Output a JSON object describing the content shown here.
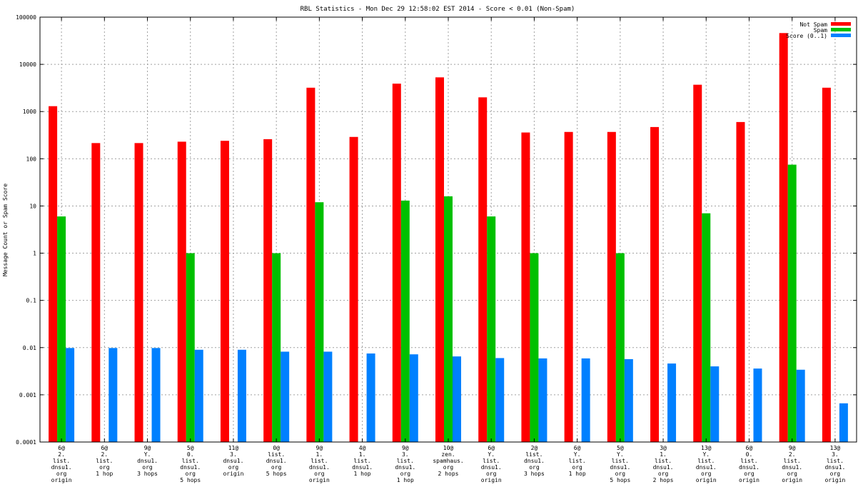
{
  "chart_data": {
    "type": "bar",
    "title": "RBL Statistics - Mon Dec 29 12:58:02 EST 2014 - Score < 0.01 (Non-Spam)",
    "ylabel": "Message Count or Spam Score",
    "xlabel": "",
    "yscale": "log",
    "ylim": [
      0.0001,
      100000
    ],
    "grid": true,
    "legend_position": "top-right",
    "y_ticks": [
      "0.0001",
      "0.001",
      "0.01",
      "0.1",
      "1",
      "10",
      "100",
      "1000",
      "10000",
      "100000"
    ],
    "categories": [
      [
        "6@",
        "2.",
        "list.",
        "dnsu1.",
        "org",
        "origin"
      ],
      [
        "6@",
        "2.",
        "list.",
        "org",
        "1 hop"
      ],
      [
        "9@",
        "Y.",
        "dnsu1.",
        "org",
        "3 hops"
      ],
      [
        "5@",
        "0.",
        "list.",
        "dnsu1.",
        "org",
        "5 hops"
      ],
      [
        "11@",
        "3.",
        "dnsu1.",
        "org",
        "origin"
      ],
      [
        "0@",
        "list.",
        "dnsu1.",
        "org",
        "5 hops"
      ],
      [
        "9@",
        "1.",
        "list.",
        "dnsu1.",
        "org",
        "origin"
      ],
      [
        "4@",
        "1.",
        "list.",
        "dnsu1.",
        "1 hop"
      ],
      [
        "9@",
        "3.",
        "list.",
        "dnsu1.",
        "org",
        "1 hop"
      ],
      [
        "10@",
        "zen.",
        "spamhaus.",
        "org",
        "2 hops"
      ],
      [
        "6@",
        "Y.",
        "list.",
        "dnsu1.",
        "org",
        "origin"
      ],
      [
        "2@",
        "list.",
        "dnsu1.",
        "org",
        "3 hops"
      ],
      [
        "6@",
        "Y.",
        "list.",
        "org",
        "1 hop"
      ],
      [
        "5@",
        "Y.",
        "list.",
        "dnsu1.",
        "org",
        "5 hops"
      ],
      [
        "3@",
        "1.",
        "list.",
        "dnsu1.",
        "org",
        "2 hops"
      ],
      [
        "13@",
        "Y.",
        "list.",
        "dnsu1.",
        "org",
        "origin"
      ],
      [
        "6@",
        "0.",
        "list.",
        "dnsu1.",
        "org",
        "origin"
      ],
      [
        "9@",
        "2.",
        "list.",
        "dnsu1.",
        "org",
        "origin"
      ],
      [
        "13@",
        "3.",
        "list.",
        "dnsu1.",
        "org",
        "origin"
      ]
    ],
    "series": [
      {
        "name": "Not Spam",
        "color": "#ff0000",
        "values": [
          1300,
          215,
          215,
          230,
          240,
          260,
          3200,
          290,
          3900,
          5300,
          2000,
          360,
          370,
          370,
          470,
          3700,
          600,
          46000,
          3200
        ]
      },
      {
        "name": "Spam",
        "color": "#00c000",
        "values": [
          6,
          null,
          null,
          1,
          null,
          1,
          12,
          null,
          13,
          16,
          6,
          1,
          null,
          1,
          null,
          7,
          null,
          75,
          null
        ]
      },
      {
        "name": "Score (0..1)",
        "color": "#0080ff",
        "values": [
          0.0098,
          0.0098,
          0.0098,
          0.009,
          0.009,
          0.0082,
          0.0082,
          0.0075,
          0.0072,
          0.0065,
          0.006,
          0.0059,
          0.0059,
          0.0057,
          0.0046,
          0.004,
          0.0036,
          0.0034,
          0.00066
        ]
      }
    ]
  }
}
